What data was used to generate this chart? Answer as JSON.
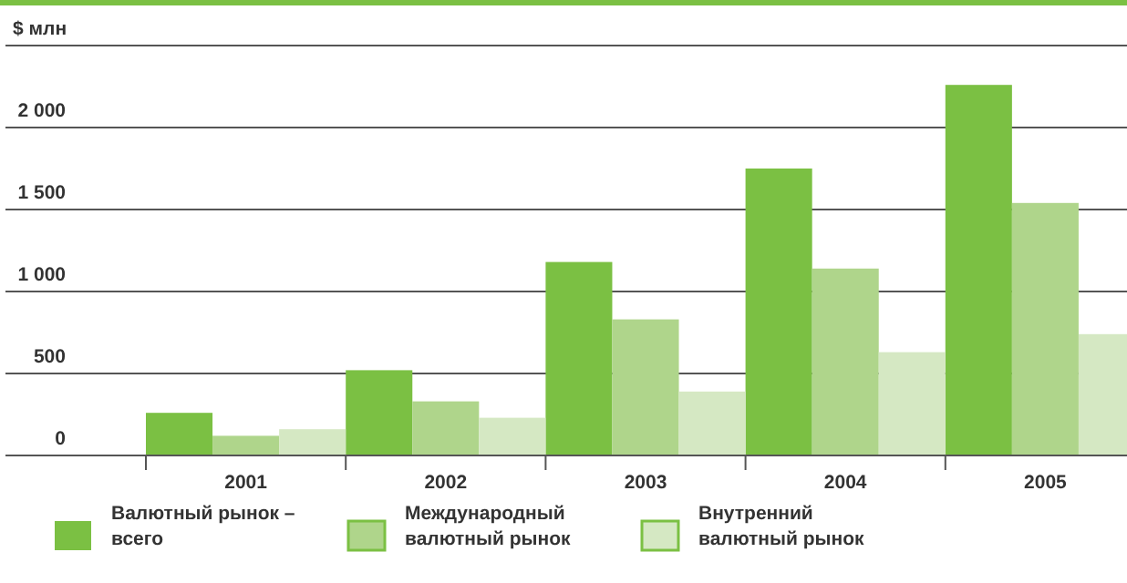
{
  "chart_data": {
    "type": "bar",
    "ylabel": "$ млн",
    "categories": [
      "2001",
      "2002",
      "2003",
      "2004",
      "2005"
    ],
    "series": [
      {
        "name": "Валютный рынок – всего",
        "color": "#7bc043",
        "values": [
          260,
          520,
          1180,
          1750,
          2260
        ]
      },
      {
        "name": "Международный валютный рынок",
        "color": "#afd58b",
        "values": [
          120,
          330,
          830,
          1140,
          1540
        ]
      },
      {
        "name": "Внутренний валютный рынок",
        "color": "#d5e8c3",
        "values": [
          160,
          230,
          390,
          630,
          740
        ]
      }
    ],
    "ylim": [
      0,
      2500
    ],
    "yticks": [
      0,
      {
        "value": 500,
        "label": "500"
      },
      {
        "value": 1000,
        "label": "1 000"
      },
      {
        "value": 1500,
        "label": "1 500"
      },
      {
        "value": 2000,
        "label": "2 000"
      },
      {
        "value": 2500,
        "label": null
      }
    ],
    "grid": "y",
    "legend": "bottom"
  }
}
